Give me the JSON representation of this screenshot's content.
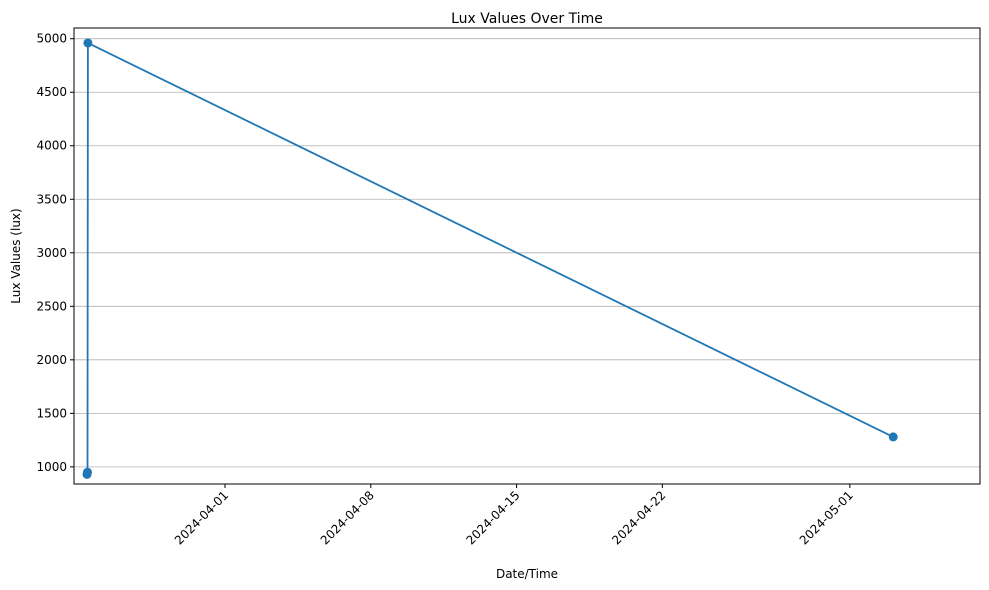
{
  "chart_data": {
    "type": "line",
    "title": "Lux Values Over Time",
    "xlabel": "Date/Time",
    "ylabel": "Lux Values (lux)",
    "x_ticks": [
      "2024-04-01",
      "2024-04-08",
      "2024-04-15",
      "2024-04-22",
      "2024-05-01"
    ],
    "y_ticks": [
      "1000",
      "1500",
      "2000",
      "2500",
      "3000",
      "3500",
      "4000",
      "4500",
      "5000"
    ],
    "xlim": [
      "2024-03-24T18:00:00",
      "2024-05-07T06:00:00"
    ],
    "ylim": [
      840,
      5100
    ],
    "grid": "y",
    "series": [
      {
        "color": "#1f77b4",
        "marker": "circle",
        "points": [
          {
            "x": "2024-03-25T09:00:00",
            "y": 930
          },
          {
            "x": "2024-03-25T09:30:00",
            "y": 950
          },
          {
            "x": "2024-03-25T10:00:00",
            "y": 4960
          },
          {
            "x": "2024-05-03T02:00:00",
            "y": 1280
          }
        ]
      }
    ]
  }
}
